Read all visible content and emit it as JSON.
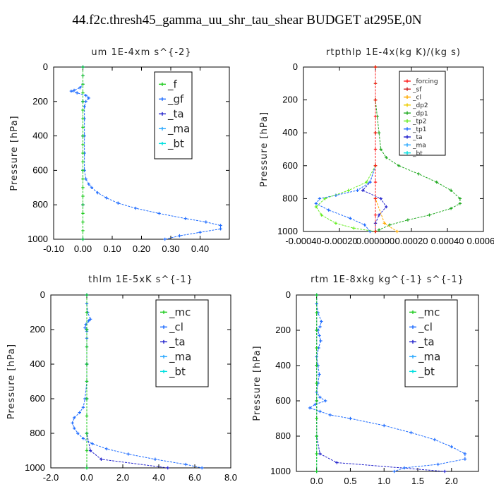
{
  "title": "44.f2c.thresh45_gamma_uu_shr_tau_shear  BUDGET at295E,0N",
  "chart_data": [
    {
      "type": "line",
      "title": "um   1E-4xm s^{-2}",
      "ylabel": "Pressure [hPa]",
      "xlim": [
        -0.1,
        0.5
      ],
      "ylim": [
        1000,
        0
      ],
      "xticks": [
        "-0.10",
        "0.00",
        "0.10",
        "0.20",
        "0.30",
        "0.40"
      ],
      "xtick_values": [
        -0.1,
        0.0,
        0.1,
        0.2,
        0.3,
        0.4
      ],
      "yticks": [
        "0",
        "200",
        "400",
        "600",
        "800",
        "1000"
      ],
      "ytick_values": [
        0,
        200,
        400,
        600,
        800,
        1000
      ],
      "legend": [
        "_f",
        "_gf",
        "_ta",
        "_ma",
        "_bt"
      ],
      "legend_position": "top-right",
      "series": [
        {
          "name": "_f",
          "color": "#22cc22",
          "y": [
            0,
            50,
            100,
            150,
            200,
            250,
            300,
            350,
            400,
            450,
            500,
            550,
            600,
            650,
            700,
            750,
            800,
            850,
            900,
            950,
            1000
          ],
          "x": [
            0,
            0,
            0,
            0,
            0,
            0,
            0,
            0,
            0,
            0,
            0,
            0,
            0,
            0,
            0,
            0,
            0,
            0,
            0,
            0,
            0
          ]
        },
        {
          "name": "_gf",
          "color": "#1e6cff",
          "y": [
            0,
            50,
            100,
            120,
            135,
            140,
            150,
            165,
            180,
            200,
            230,
            300,
            400,
            500,
            600,
            650,
            680,
            700,
            730,
            760,
            790,
            820,
            850,
            880,
            900,
            920,
            940,
            960,
            980,
            1000
          ],
          "x": [
            0,
            0,
            0,
            -0.01,
            -0.03,
            -0.04,
            -0.02,
            0.01,
            0.02,
            0.01,
            0.005,
            0.005,
            0.005,
            0.005,
            0.005,
            0.01,
            0.02,
            0.03,
            0.05,
            0.08,
            0.12,
            0.18,
            0.26,
            0.35,
            0.42,
            0.47,
            0.47,
            0.4,
            0.33,
            0.28
          ]
        },
        {
          "name": "_ta",
          "color": "#2222cc",
          "y": [
            0,
            200,
            400,
            600,
            800,
            1000
          ],
          "x": [
            0,
            0,
            0,
            0,
            0,
            0
          ]
        },
        {
          "name": "_ma",
          "color": "#2aa8ff",
          "y": [
            0,
            200,
            400,
            600,
            800,
            1000
          ],
          "x": [
            0,
            0,
            0,
            0,
            0,
            0
          ]
        },
        {
          "name": "_bt",
          "color": "#00e0e0",
          "y": [
            0,
            200,
            400,
            600,
            800,
            1000
          ],
          "x": [
            0,
            0,
            0,
            0,
            0,
            0
          ]
        }
      ]
    },
    {
      "type": "line",
      "title": "rtpthlp   1E-4x(kg K)/(kg s)",
      "ylabel": "Pressure [hPa]",
      "xlim": [
        -0.0004,
        0.0006
      ],
      "ylim": [
        1000,
        0
      ],
      "xticks": [
        "-0.00040",
        "-0.00020",
        "0.000000",
        "0.00020",
        "0.00040",
        "0.00060"
      ],
      "xtick_values": [
        -0.0004,
        -0.0002,
        0.0,
        0.0002,
        0.0004,
        0.0006
      ],
      "yticks": [
        "0",
        "200",
        "400",
        "600",
        "800",
        "1000"
      ],
      "ytick_values": [
        0,
        200,
        400,
        600,
        800,
        1000
      ],
      "legend": [
        "_forcing",
        "_sf",
        "_cl",
        "_dp2",
        "_dp1",
        "_tp2",
        "_tp1",
        "_ta",
        "_ma",
        "_bt"
      ],
      "legend_position": "top-right",
      "series": [
        {
          "name": "_forcing",
          "color": "#ff2222",
          "y": [
            0,
            100,
            200,
            300,
            400,
            500,
            600,
            700,
            800,
            900,
            1000
          ],
          "x": [
            0,
            0,
            0,
            0,
            0,
            0,
            0,
            0,
            0,
            0,
            0
          ]
        },
        {
          "name": "_sf",
          "color": "#cc2222",
          "y": [
            0,
            200,
            400,
            600,
            800,
            1000
          ],
          "x": [
            0,
            0,
            0,
            0,
            0,
            0
          ]
        },
        {
          "name": "_cl",
          "color": "#ffaa00",
          "y": [
            0,
            200,
            400,
            600,
            800,
            950,
            1000
          ],
          "x": [
            0,
            0,
            0,
            0,
            0,
            5e-05,
            0.00012
          ]
        },
        {
          "name": "_dp2",
          "color": "#eecc00",
          "y": [
            0,
            200,
            400,
            600,
            800,
            1000
          ],
          "x": [
            0,
            0,
            0,
            0,
            0,
            0
          ]
        },
        {
          "name": "_dp1",
          "color": "#22aa22",
          "y": [
            0,
            100,
            200,
            300,
            400,
            500,
            550,
            600,
            650,
            700,
            750,
            800,
            830,
            860,
            900,
            930,
            960,
            990,
            1000
          ],
          "x": [
            0,
            0,
            0,
            1e-05,
            2e-05,
            3e-05,
            6e-05,
            0.00013,
            0.00024,
            0.00034,
            0.00042,
            0.00047,
            0.00047,
            0.00042,
            0.0003,
            0.00018,
            8e-05,
            2e-05,
            0
          ]
        },
        {
          "name": "_tp2",
          "color": "#66ee22",
          "y": [
            0,
            200,
            400,
            600,
            700,
            750,
            800,
            850,
            900,
            950,
            980,
            1000
          ],
          "x": [
            0,
            0,
            0,
            0,
            -5e-05,
            -0.00015,
            -0.00028,
            -0.00033,
            -0.0003,
            -0.00022,
            -0.00012,
            0
          ]
        },
        {
          "name": "_tp1",
          "color": "#1e6cff",
          "y": [
            0,
            200,
            400,
            600,
            700,
            750,
            780,
            800,
            830,
            870,
            920,
            960,
            1000
          ],
          "x": [
            0,
            0,
            0,
            0,
            -3e-05,
            -0.0001,
            -0.00022,
            -0.00031,
            -0.00033,
            -0.00026,
            -0.00014,
            -6e-05,
            -3e-05
          ]
        },
        {
          "name": "_ta",
          "color": "#2222cc",
          "y": [
            0,
            200,
            400,
            600,
            700,
            750,
            800,
            850,
            900,
            950,
            1000
          ],
          "x": [
            0,
            0,
            0,
            0,
            -3e-05,
            -7e-05,
            3e-05,
            6e-05,
            2e-05,
            0,
            0
          ]
        },
        {
          "name": "_ma",
          "color": "#2aa8ff",
          "y": [
            0,
            200,
            400,
            600,
            800,
            1000
          ],
          "x": [
            0,
            0,
            0,
            0,
            0,
            0
          ]
        },
        {
          "name": "_bt",
          "color": "#00e0e0",
          "y": [
            0,
            200,
            400,
            600,
            800,
            1000
          ],
          "x": [
            0,
            0,
            0,
            0,
            0,
            0
          ]
        }
      ]
    },
    {
      "type": "line",
      "title": "thlm   1E-5xK s^{-1}",
      "ylabel": "Pressure [hPa]",
      "xlim": [
        -2.0,
        8.0
      ],
      "ylim": [
        1000,
        0
      ],
      "xticks": [
        "-2.0",
        "0.0",
        "2.0",
        "4.0",
        "6.0",
        "8.0"
      ],
      "xtick_values": [
        -2.0,
        0.0,
        2.0,
        4.0,
        6.0,
        8.0
      ],
      "yticks": [
        "0",
        "200",
        "400",
        "600",
        "800",
        "1000"
      ],
      "ytick_values": [
        0,
        200,
        400,
        600,
        800,
        1000
      ],
      "legend": [
        "_mc",
        "_cl",
        "_ta",
        "_ma",
        "_bt"
      ],
      "legend_position": "top-right",
      "series": [
        {
          "name": "_mc",
          "color": "#22cc22",
          "y": [
            0,
            100,
            200,
            300,
            400,
            500,
            600,
            700,
            800,
            900,
            1000
          ],
          "x": [
            0,
            0,
            0,
            0,
            0,
            0,
            0,
            0,
            0,
            0,
            0
          ]
        },
        {
          "name": "_cl",
          "color": "#1e6cff",
          "y": [
            0,
            50,
            100,
            140,
            150,
            170,
            190,
            210,
            250,
            300,
            400,
            500,
            600,
            650,
            680,
            710,
            740,
            770,
            800,
            830,
            860,
            890,
            920,
            950,
            980,
            1000
          ],
          "x": [
            0,
            0,
            0.05,
            0.2,
            0.1,
            -0.05,
            -0.1,
            0,
            0,
            0,
            0,
            0,
            -0.1,
            -0.2,
            -0.4,
            -0.7,
            -0.8,
            -0.7,
            -0.5,
            -0.2,
            0.3,
            1.1,
            2.3,
            3.8,
            5.5,
            6.4
          ]
        },
        {
          "name": "_ta",
          "color": "#2222cc",
          "y": [
            0,
            200,
            400,
            600,
            800,
            900,
            950,
            1000
          ],
          "x": [
            0,
            0,
            0,
            0,
            0,
            0.2,
            0.8,
            4.5
          ]
        },
        {
          "name": "_ma",
          "color": "#2aa8ff",
          "y": [
            0,
            200,
            400,
            600,
            800,
            1000
          ],
          "x": [
            0,
            0,
            0,
            0,
            0,
            0
          ]
        },
        {
          "name": "_bt",
          "color": "#00e0e0",
          "y": [
            0,
            200,
            400,
            600,
            800,
            1000
          ],
          "x": [
            0,
            0,
            0,
            0,
            0,
            0
          ]
        }
      ]
    },
    {
      "type": "line",
      "title": "rtm   1E-8xkg kg^{-1} s^{-1}",
      "ylabel": "Pressure [hPa]",
      "xlim": [
        -0.3,
        2.4
      ],
      "ylim": [
        1000,
        0
      ],
      "xticks": [
        "0.0",
        "0.5",
        "1.0",
        "1.5",
        "2.0"
      ],
      "xtick_values": [
        0.0,
        0.5,
        1.0,
        1.5,
        2.0
      ],
      "yticks": [
        "0",
        "200",
        "400",
        "600",
        "800",
        "1000"
      ],
      "ytick_values": [
        0,
        200,
        400,
        600,
        800,
        1000
      ],
      "legend": [
        "_mc",
        "_cl",
        "_ta",
        "_ma",
        "_bt"
      ],
      "legend_position": "top-right",
      "series": [
        {
          "name": "_mc",
          "color": "#22cc22",
          "y": [
            0,
            100,
            200,
            300,
            400,
            500,
            600,
            700,
            800,
            900,
            1000
          ],
          "x": [
            0,
            0,
            0,
            0,
            0,
            0,
            0,
            0,
            0,
            0,
            0
          ]
        },
        {
          "name": "_cl",
          "color": "#1e6cff",
          "y": [
            0,
            50,
            100,
            150,
            180,
            200,
            230,
            260,
            300,
            350,
            400,
            450,
            500,
            550,
            580,
            600,
            620,
            640,
            660,
            680,
            700,
            740,
            780,
            820,
            860,
            900,
            930,
            960,
            980,
            1000
          ],
          "x": [
            0,
            0,
            0.02,
            0.07,
            0.05,
            0.02,
            0.04,
            0.06,
            0.03,
            0,
            0.02,
            0.04,
            0.02,
            0,
            0.05,
            0.13,
            -0.02,
            -0.1,
            0.05,
            0.2,
            0.5,
            1.0,
            1.4,
            1.75,
            2.0,
            2.2,
            2.2,
            1.8,
            1.3,
            1.15
          ]
        },
        {
          "name": "_ta",
          "color": "#2222cc",
          "y": [
            0,
            200,
            400,
            600,
            800,
            900,
            950,
            1000
          ],
          "x": [
            0,
            0,
            0,
            0,
            0,
            0.05,
            0.3,
            1.9
          ]
        },
        {
          "name": "_ma",
          "color": "#2aa8ff",
          "y": [
            0,
            200,
            400,
            600,
            800,
            1000
          ],
          "x": [
            0,
            0,
            0,
            0,
            0,
            0
          ]
        },
        {
          "name": "_bt",
          "color": "#00e0e0",
          "y": [
            0,
            200,
            400,
            600,
            800,
            1000
          ],
          "x": [
            0,
            0,
            0,
            0,
            0,
            0
          ]
        }
      ]
    }
  ]
}
